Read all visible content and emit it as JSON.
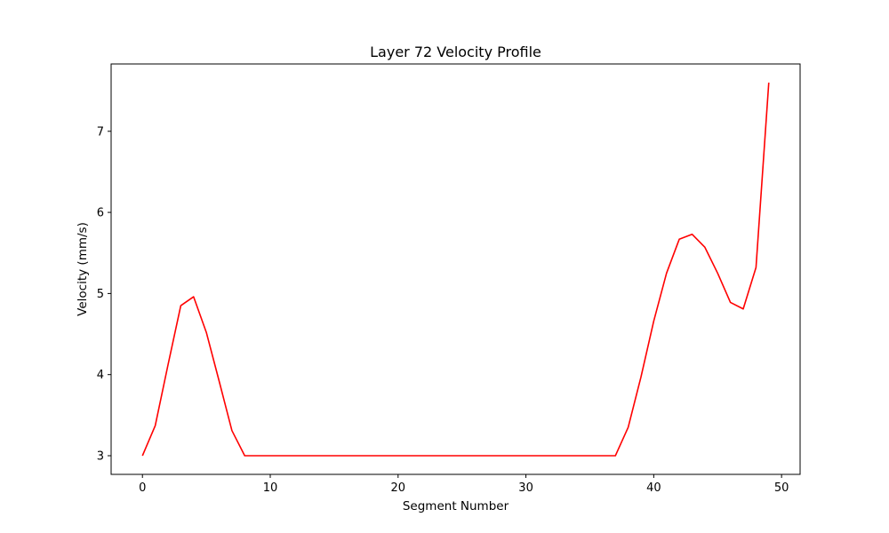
{
  "chart_data": {
    "type": "line",
    "title": "Layer 72 Velocity Profile",
    "xlabel": "Segment Number",
    "ylabel": "Velocity (mm/s)",
    "xlim": [
      -2.45,
      51.45
    ],
    "ylim": [
      2.77,
      7.83
    ],
    "xticks": [
      0,
      10,
      20,
      30,
      40,
      50
    ],
    "yticks": [
      3,
      4,
      5,
      6,
      7
    ],
    "grid": false,
    "series": [
      {
        "color": "#ff0000",
        "x": [
          0,
          1,
          2,
          3,
          4,
          5,
          6,
          7,
          8,
          9,
          10,
          11,
          12,
          13,
          14,
          15,
          16,
          17,
          18,
          19,
          20,
          21,
          22,
          23,
          24,
          25,
          26,
          27,
          28,
          29,
          30,
          31,
          32,
          33,
          34,
          35,
          36,
          37,
          38,
          39,
          40,
          41,
          42,
          43,
          44,
          45,
          46,
          47,
          48,
          49
        ],
        "values": [
          3.0,
          3.37,
          4.12,
          4.85,
          4.96,
          4.52,
          3.92,
          3.31,
          3.0,
          3.0,
          3.0,
          3.0,
          3.0,
          3.0,
          3.0,
          3.0,
          3.0,
          3.0,
          3.0,
          3.0,
          3.0,
          3.0,
          3.0,
          3.0,
          3.0,
          3.0,
          3.0,
          3.0,
          3.0,
          3.0,
          3.0,
          3.0,
          3.0,
          3.0,
          3.0,
          3.0,
          3.0,
          3.0,
          3.35,
          3.97,
          4.66,
          5.25,
          5.67,
          5.73,
          5.57,
          5.25,
          4.89,
          4.81,
          5.32,
          7.6
        ]
      }
    ]
  }
}
